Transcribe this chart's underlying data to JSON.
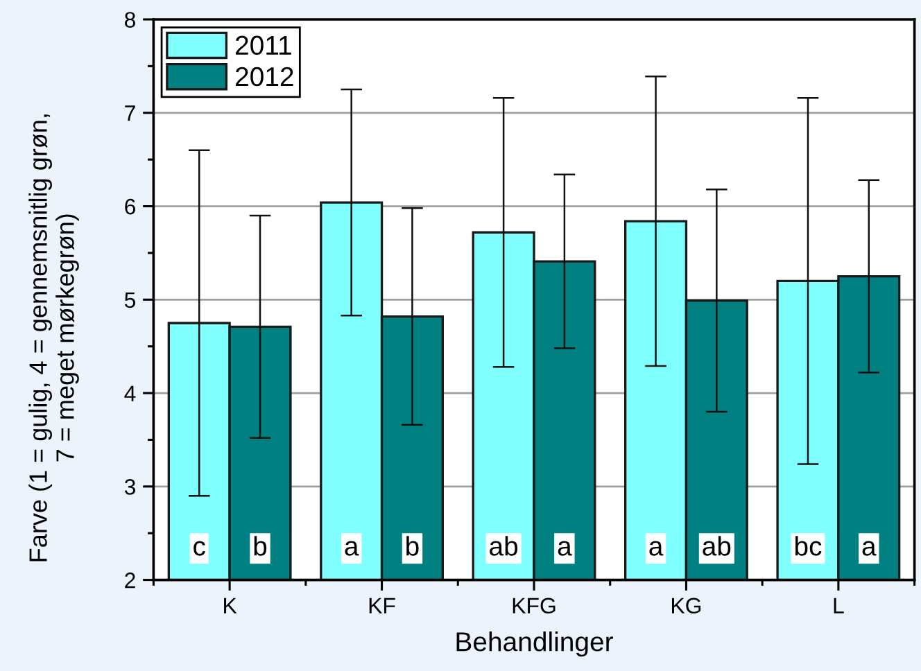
{
  "chart_data": {
    "type": "bar",
    "categories": [
      "K",
      "KF",
      "KFG",
      "KG",
      "L"
    ],
    "series": [
      {
        "name": "2011",
        "color": "#80ffff",
        "values": [
          4.75,
          6.04,
          5.72,
          5.84,
          5.2
        ],
        "errors": [
          1.85,
          1.21,
          1.44,
          1.55,
          1.96
        ],
        "value_labels": [
          "c",
          "a",
          "ab",
          "a",
          "bc"
        ]
      },
      {
        "name": "2012",
        "color": "#008080",
        "values": [
          4.71,
          4.82,
          5.41,
          4.99,
          5.25
        ],
        "errors": [
          1.19,
          1.16,
          0.93,
          1.19,
          1.03
        ],
        "value_labels": [
          "b",
          "b",
          "a",
          "ab",
          "a"
        ]
      }
    ],
    "xlabel": "Behandlinger",
    "ylabel": "Farve (1 = gulig, 4 = gennemsnitlig grøn,\n7 = meget mørkegrøn)",
    "ylim": [
      2,
      8
    ],
    "yticks": [
      2,
      {
        "value": 2.5,
        "label": null
      },
      3,
      {
        "value": 3.5,
        "label": null
      },
      4,
      {
        "value": 4.5,
        "label": null
      },
      5,
      {
        "value": 5.5,
        "label": null
      },
      6,
      {
        "value": 6.5,
        "label": null
      },
      7,
      {
        "value": 7.5,
        "label": null
      },
      8
    ],
    "grid": "y",
    "legend": "top left"
  }
}
